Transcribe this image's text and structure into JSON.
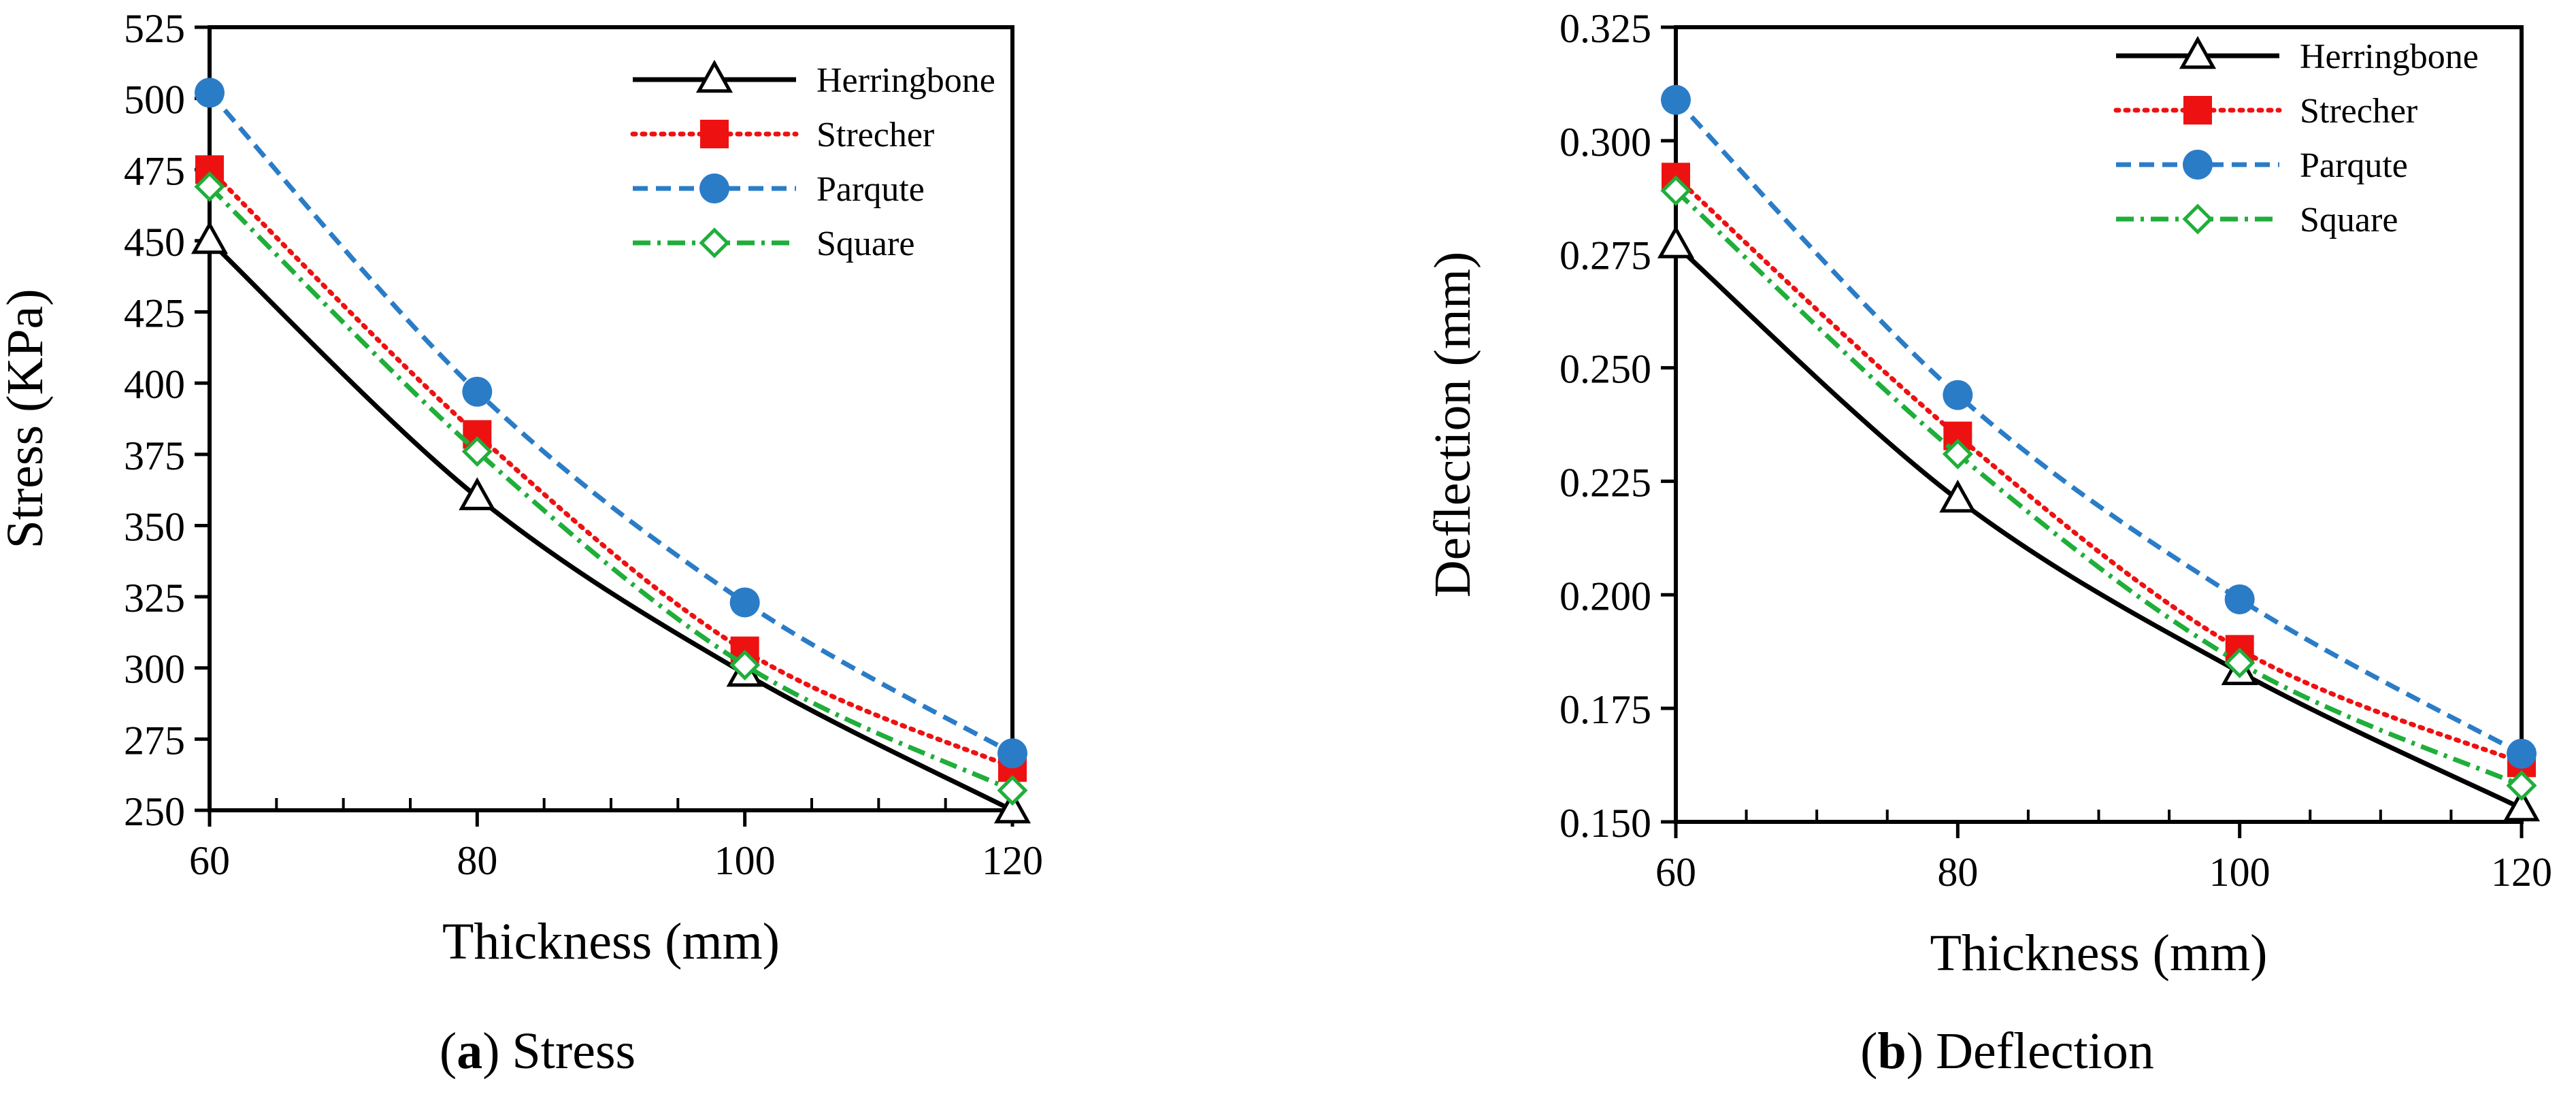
{
  "chart_data": [
    {
      "type": "line",
      "panel_letter": "a",
      "caption_open": "(",
      "caption_close": ")",
      "caption_text": "Stress",
      "xlabel": "Thickness (mm)",
      "ylabel": "Stress (KPa)",
      "x": [
        60,
        80,
        100,
        120
      ],
      "xlim": [
        60,
        120
      ],
      "ylim": [
        250,
        525
      ],
      "xticks": [
        60,
        80,
        100,
        120
      ],
      "xtick_labels": [
        "60",
        "80",
        "100",
        "120"
      ],
      "x_minor_step": 5,
      "yticks": [
        250,
        275,
        300,
        325,
        350,
        375,
        400,
        425,
        450,
        475,
        500,
        525
      ],
      "ytick_labels": [
        "250",
        "275",
        "300",
        "325",
        "350",
        "375",
        "400",
        "425",
        "450",
        "475",
        "500",
        "525"
      ],
      "legend_position": "top-right",
      "series": [
        {
          "name": "Herringbone",
          "values": [
            450,
            360,
            298,
            250
          ],
          "color": "#000000",
          "line_style": "solid",
          "marker": "triangle-open"
        },
        {
          "name": "Strecher",
          "values": [
            475,
            382,
            306,
            265
          ],
          "color": "#ee1111",
          "line_style": "dotted",
          "marker": "square-filled"
        },
        {
          "name": "Parqute",
          "values": [
            502,
            397,
            323,
            270
          ],
          "color": "#2a7cc7",
          "line_style": "dashed",
          "marker": "circle-filled"
        },
        {
          "name": "Square",
          "values": [
            469,
            376,
            301,
            257
          ],
          "color": "#1fae3a",
          "line_style": "dash-dot",
          "marker": "diamond-open"
        }
      ]
    },
    {
      "type": "line",
      "panel_letter": "b",
      "caption_open": "(",
      "caption_close": ")",
      "caption_text": "Deflection",
      "xlabel": "Thickness (mm)",
      "ylabel": "Deflection (mm)",
      "x": [
        60,
        80,
        100,
        120
      ],
      "xlim": [
        60,
        120
      ],
      "ylim": [
        0.15,
        0.325
      ],
      "xticks": [
        60,
        80,
        100,
        120
      ],
      "xtick_labels": [
        "60",
        "80",
        "100",
        "120"
      ],
      "x_minor_step": 5,
      "yticks": [
        0.15,
        0.175,
        0.2,
        0.225,
        0.25,
        0.275,
        0.3,
        0.325
      ],
      "ytick_labels": [
        "0.150",
        "0.175",
        "0.200",
        "0.225",
        "0.250",
        "0.275",
        "0.300",
        "0.325"
      ],
      "legend_position": "top-right",
      "series": [
        {
          "name": "Herringbone",
          "values": [
            0.277,
            0.221,
            0.183,
            0.153
          ],
          "color": "#000000",
          "line_style": "solid",
          "marker": "triangle-open"
        },
        {
          "name": "Strecher",
          "values": [
            0.292,
            0.235,
            0.188,
            0.163
          ],
          "color": "#ee1111",
          "line_style": "dotted",
          "marker": "square-filled"
        },
        {
          "name": "Parqute",
          "values": [
            0.309,
            0.244,
            0.199,
            0.165
          ],
          "color": "#2a7cc7",
          "line_style": "dashed",
          "marker": "circle-filled"
        },
        {
          "name": "Square",
          "values": [
            0.289,
            0.231,
            0.185,
            0.158
          ],
          "color": "#1fae3a",
          "line_style": "dash-dot",
          "marker": "diamond-open"
        }
      ]
    }
  ]
}
